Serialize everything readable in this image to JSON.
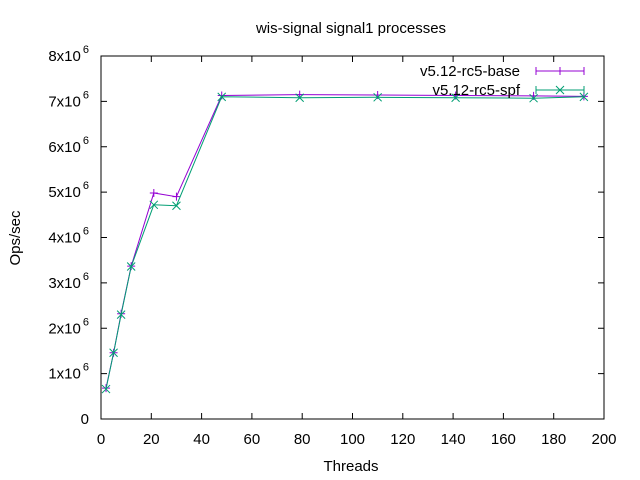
{
  "chart_data": {
    "type": "line",
    "title": "wis-signal signal1 processes",
    "xlabel": "Threads",
    "ylabel": "Ops/sec",
    "xlim": [
      0,
      200
    ],
    "ylim": [
      0,
      8000000
    ],
    "xticks": [
      0,
      20,
      40,
      60,
      80,
      100,
      120,
      140,
      160,
      180,
      200
    ],
    "yticks": [
      {
        "value": 0,
        "mantissa": "0",
        "exp": ""
      },
      {
        "value": 1000000,
        "mantissa": "1x10",
        "exp": "6"
      },
      {
        "value": 2000000,
        "mantissa": "2x10",
        "exp": "6"
      },
      {
        "value": 3000000,
        "mantissa": "3x10",
        "exp": "6"
      },
      {
        "value": 4000000,
        "mantissa": "4x10",
        "exp": "6"
      },
      {
        "value": 5000000,
        "mantissa": "5x10",
        "exp": "6"
      },
      {
        "value": 6000000,
        "mantissa": "6x10",
        "exp": "6"
      },
      {
        "value": 7000000,
        "mantissa": "7x10",
        "exp": "6"
      },
      {
        "value": 8000000,
        "mantissa": "8x10",
        "exp": "6"
      }
    ],
    "grid": false,
    "legend_position": "top-right",
    "series": [
      {
        "name": "v5.12-rc5-base",
        "color": "#9400d3",
        "marker": "plus",
        "x": [
          2,
          5,
          8,
          12,
          21,
          30,
          48,
          79,
          110,
          141,
          172,
          192
        ],
        "y": [
          680000,
          1460000,
          2320000,
          3370000,
          4980000,
          4900000,
          7130000,
          7150000,
          7140000,
          7130000,
          7120000,
          7110000
        ]
      },
      {
        "name": "v5.12-rc5-spf",
        "color": "#009e73",
        "marker": "cross",
        "x": [
          2,
          5,
          8,
          12,
          21,
          30,
          48,
          79,
          110,
          141,
          172,
          192
        ],
        "y": [
          660000,
          1460000,
          2300000,
          3360000,
          4720000,
          4700000,
          7100000,
          7080000,
          7090000,
          7080000,
          7070000,
          7100000
        ]
      }
    ]
  }
}
